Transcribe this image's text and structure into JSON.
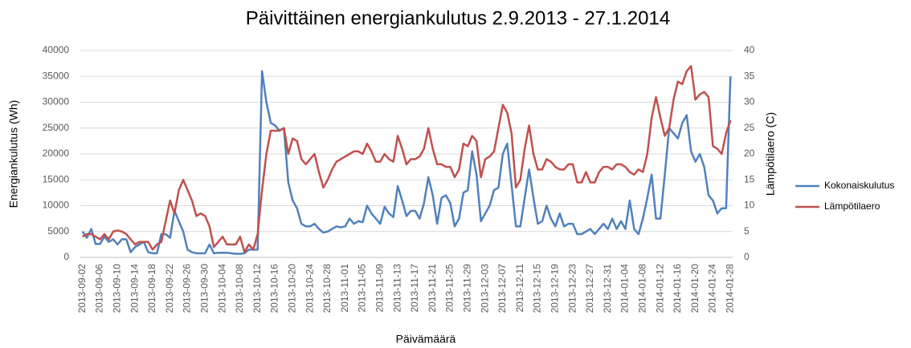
{
  "chart_data": {
    "type": "line",
    "title": "Päivittäinen energiankulutus 2.9.2013 - 27.1.2014",
    "x_label": "Päivämäärä",
    "y_label": "Energiankulutus  (Wh)",
    "y2_label": "Lämpötilaero  (C)",
    "categories": [
      "2013-09-02",
      null,
      null,
      null,
      "2013-09-06",
      null,
      null,
      null,
      "2013-09-10",
      null,
      null,
      null,
      "2013-09-14",
      null,
      null,
      null,
      "2013-09-18",
      null,
      null,
      null,
      "2013-09-22",
      null,
      null,
      null,
      "2013-09-26",
      null,
      null,
      null,
      "2013-09-30",
      null,
      null,
      null,
      "2013-10-04",
      null,
      null,
      null,
      "2013-10-08",
      null,
      null,
      null,
      "2013-10-12",
      null,
      null,
      null,
      "2013-10-16",
      null,
      null,
      null,
      "2013-10-20",
      null,
      null,
      null,
      "2013-10-24",
      null,
      null,
      null,
      "2013-10-28",
      null,
      null,
      null,
      "2013-11-01",
      null,
      null,
      null,
      "2013-11-05",
      null,
      null,
      null,
      "2013-11-09",
      null,
      null,
      null,
      "2013-11-13",
      null,
      null,
      null,
      "2013-11-17",
      null,
      null,
      null,
      "2013-11-21",
      null,
      null,
      null,
      "2013-11-25",
      null,
      null,
      null,
      "2013-11-29",
      null,
      null,
      null,
      "2013-12-03",
      null,
      null,
      null,
      "2013-12-07",
      null,
      null,
      null,
      "2013-12-11",
      null,
      null,
      null,
      "2013-12-15",
      null,
      null,
      null,
      "2013-12-19",
      null,
      null,
      null,
      "2013-12-23",
      null,
      null,
      null,
      "2013-12-27",
      null,
      null,
      null,
      "2013-12-31",
      null,
      null,
      null,
      "2014-01-04",
      null,
      null,
      null,
      "2014-01-08",
      null,
      null,
      null,
      "2014-01-12",
      null,
      null,
      null,
      "2014-01-16",
      null,
      null,
      null,
      "2014-01-20",
      null,
      null,
      null,
      "2014-01-24",
      null,
      null,
      null,
      "2014-01-28"
    ],
    "series": [
      {
        "name": "Kokonaiskulutus",
        "color": "#4f81bd",
        "values": [
          5000,
          3800,
          5500,
          2600,
          2600,
          4000,
          3000,
          3500,
          2500,
          3500,
          3500,
          1000,
          2000,
          2500,
          3000,
          1000,
          800,
          800,
          4500,
          4500,
          3800,
          9000,
          7000,
          5000,
          1500,
          1000,
          800,
          800,
          800,
          2500,
          800,
          900,
          900,
          900,
          800,
          700,
          700,
          800,
          1500,
          1500,
          1500,
          36000,
          30000,
          26000,
          25500,
          24500,
          25000,
          14500,
          11000,
          9500,
          6500,
          6000,
          6000,
          6500,
          5500,
          4800,
          5000,
          5500,
          6000,
          5800,
          6000,
          7500,
          6500,
          7000,
          6800,
          10000,
          8500,
          7500,
          6500,
          9800,
          8500,
          7800,
          13800,
          11000,
          8000,
          9000,
          9000,
          7500,
          10500,
          15500,
          12000,
          6500,
          11500,
          12000,
          10500,
          6000,
          7500,
          12500,
          13000,
          20500,
          16000,
          7000,
          8500,
          10000,
          13000,
          13500,
          20000,
          22000,
          14000,
          6000,
          6000,
          11500,
          17000,
          11500,
          6500,
          7000,
          10000,
          7500,
          6000,
          8500,
          6000,
          6500,
          6500,
          4500,
          4500,
          5000,
          5500,
          4500,
          5500,
          6500,
          5500,
          7500,
          5500,
          7000,
          5500,
          11000,
          5500,
          4500,
          7500,
          11500,
          16000,
          7500,
          7500,
          16000,
          25000,
          24000,
          23000,
          26000,
          27500,
          20500,
          18500,
          20000,
          17500,
          12000,
          11000,
          8500,
          9500,
          9500,
          35000
        ]
      },
      {
        "name": "Lämpötilaero",
        "color": "#c0504d",
        "axis": "y2",
        "values": [
          4,
          4.5,
          4.5,
          4,
          3.5,
          4.5,
          3.5,
          5,
          5.2,
          5,
          4.5,
          3.5,
          2.5,
          3,
          3,
          3,
          1.5,
          2.5,
          3,
          7,
          11,
          8.5,
          13,
          15,
          13,
          11,
          8,
          8.5,
          8,
          6,
          2,
          3,
          4,
          2.5,
          2.5,
          2.5,
          4,
          1,
          2.5,
          1.5,
          4.5,
          13,
          20,
          24.5,
          24.5,
          24.5,
          25,
          20,
          23,
          22.5,
          19,
          18,
          19,
          20,
          16.5,
          13.5,
          15,
          17,
          18.5,
          19,
          19.5,
          20,
          20.5,
          20.5,
          20,
          22,
          20.5,
          18.5,
          18.5,
          20,
          19,
          18.5,
          23.5,
          21,
          18,
          19,
          19,
          19.5,
          21,
          25,
          21,
          18,
          18,
          17.5,
          17.5,
          15.5,
          17,
          22,
          21.5,
          23.5,
          22.5,
          15.5,
          19,
          19.5,
          20.5,
          25,
          29.5,
          28,
          24,
          13.5,
          15,
          21,
          25.5,
          20,
          17,
          17,
          19,
          18.5,
          17.5,
          17,
          17,
          18,
          18,
          14.5,
          14.5,
          16.5,
          14.5,
          14.5,
          16.5,
          17.5,
          17.5,
          17,
          18,
          18,
          17.5,
          16.5,
          16,
          17,
          16.5,
          20,
          27,
          31,
          27,
          23.5,
          25,
          30.5,
          34,
          33.5,
          36,
          37,
          30.5,
          31.5,
          32,
          31,
          21.5,
          21,
          20,
          24,
          26.5
        ]
      }
    ],
    "ylim": [
      0,
      40000
    ],
    "yticks": [
      0,
      5000,
      10000,
      15000,
      20000,
      25000,
      30000,
      35000,
      40000
    ],
    "y2lim": [
      0,
      40
    ],
    "y2ticks": [
      0,
      5,
      10,
      15,
      20,
      25,
      30,
      35,
      40
    ],
    "grid": true,
    "legend": "right"
  }
}
